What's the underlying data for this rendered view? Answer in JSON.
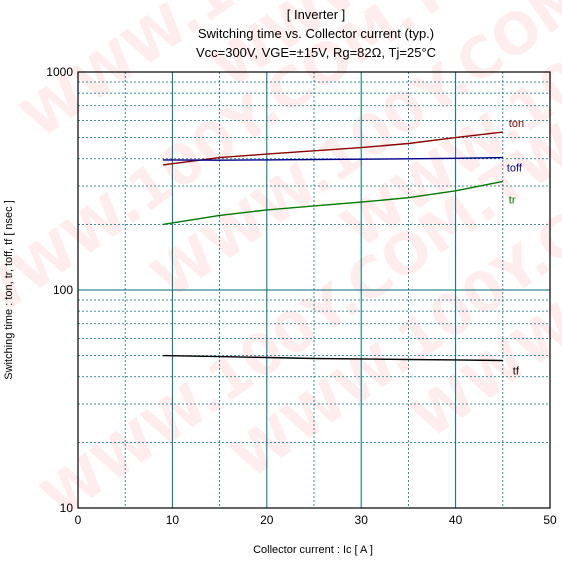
{
  "chart_data": {
    "type": "line",
    "title": "[ Inverter ]",
    "subtitle": "Switching time  vs.  Collector current  (typ.)",
    "conditions": "Vcc=300V, VGE=±15V, Rg=82Ω, Tj=25°C",
    "xlabel": "Collector current  :  Ic  [ A ]",
    "ylabel": "Switching time  :  ton, tr, toff, tf  [ nsec ]",
    "xlim": [
      0,
      50
    ],
    "ylim": [
      10,
      1000
    ],
    "yscale": "log",
    "grid": true,
    "x_ticks": [
      "0",
      "10",
      "20",
      "30",
      "40",
      "50"
    ],
    "y_ticks": [
      "10",
      "100",
      "1000"
    ],
    "watermark": "WWW.100Y.COM.TW",
    "series": [
      {
        "name": "ton",
        "color": "#8b0000",
        "x": [
          9,
          15,
          20,
          25,
          30,
          35,
          40,
          45
        ],
        "y": [
          375,
          405,
          420,
          435,
          450,
          470,
          500,
          530
        ]
      },
      {
        "name": "toff",
        "color": "#00008b",
        "x": [
          9,
          15,
          20,
          25,
          30,
          35,
          40,
          45
        ],
        "y": [
          395,
          394,
          395,
          397,
          398,
          400,
          402,
          405
        ]
      },
      {
        "name": "tr",
        "color": "#007a00",
        "x": [
          9,
          15,
          20,
          25,
          30,
          35,
          40,
          45
        ],
        "y": [
          200,
          220,
          233,
          243,
          253,
          265,
          285,
          315
        ]
      },
      {
        "name": "tf",
        "color": "#000000",
        "x": [
          9,
          15,
          20,
          25,
          30,
          35,
          40,
          45
        ],
        "y": [
          50,
          49.5,
          49,
          48.5,
          48.3,
          48,
          47.8,
          47.5
        ]
      }
    ]
  }
}
